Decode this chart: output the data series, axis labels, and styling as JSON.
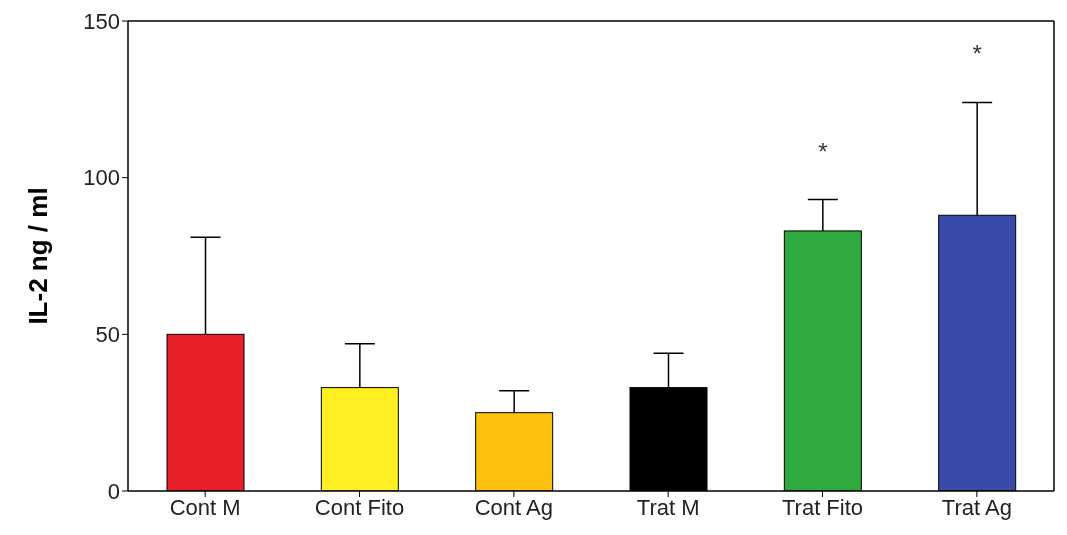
{
  "chart_data": {
    "type": "bar",
    "ylabel": "IL-2 ng / ml",
    "categories": [
      "Cont M",
      "Cont Fito",
      "Cont Ag",
      "Trat M",
      "Trat Fito",
      "Trat Ag"
    ],
    "values": [
      50,
      33,
      25,
      33,
      83,
      88
    ],
    "colors": [
      "#e8202a",
      "#ffee22",
      "#ffc20e",
      "#000000",
      "#2eaa3e",
      "#3a4aa8"
    ],
    "errors": [
      [
        50,
        81
      ],
      [
        33,
        47
      ],
      [
        25,
        32
      ],
      [
        33,
        44
      ],
      [
        83,
        93
      ],
      [
        88,
        124
      ]
    ],
    "ylim": [
      0,
      150
    ],
    "yticks": [
      0,
      50,
      100,
      150
    ],
    "grid": false,
    "annotations": [
      "*",
      "*"
    ]
  }
}
